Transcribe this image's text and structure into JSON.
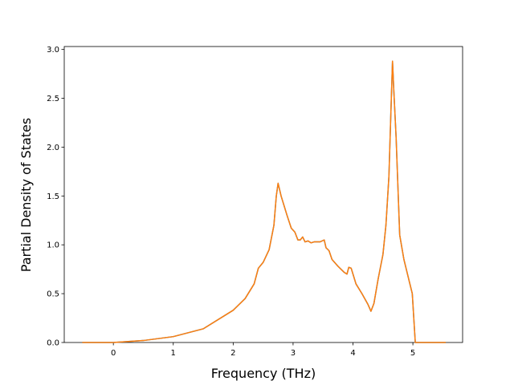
{
  "chart_data": {
    "type": "line",
    "xlabel": "Frequency (THz)",
    "ylabel": "Partial Density of States",
    "x": [
      -0.52,
      0,
      0.5,
      1,
      1.5,
      2,
      2.2,
      2.35,
      2.42,
      2.5,
      2.6,
      2.68,
      2.72,
      2.75,
      2.8,
      2.85,
      2.9,
      2.97,
      3.03,
      3.08,
      3.12,
      3.16,
      3.2,
      3.25,
      3.3,
      3.35,
      3.45,
      3.52,
      3.55,
      3.6,
      3.65,
      3.75,
      3.85,
      3.9,
      3.93,
      3.97,
      4.0,
      4.05,
      4.15,
      4.25,
      4.3,
      4.35,
      4.42,
      4.5,
      4.55,
      4.6,
      4.63,
      4.66,
      4.68,
      4.72,
      4.78,
      4.85,
      4.95,
      4.99,
      5.04,
      5.55
    ],
    "series": [
      {
        "color": "#1f77b4",
        "values": [
          0,
          0,
          0.02,
          0.06,
          0.14,
          0.33,
          0.45,
          0.6,
          0.76,
          0.82,
          0.95,
          1.2,
          1.5,
          1.63,
          1.5,
          1.4,
          1.3,
          1.17,
          1.13,
          1.05,
          1.05,
          1.08,
          1.03,
          1.04,
          1.02,
          1.03,
          1.03,
          1.05,
          0.97,
          0.94,
          0.85,
          0.78,
          0.72,
          0.7,
          0.77,
          0.76,
          0.7,
          0.6,
          0.5,
          0.39,
          0.32,
          0.4,
          0.65,
          0.9,
          1.2,
          1.7,
          2.3,
          2.88,
          2.6,
          2.1,
          1.1,
          0.85,
          0.6,
          0.5,
          0,
          0
        ]
      },
      {
        "color": "#ff7f0e",
        "values": [
          0,
          0,
          0.02,
          0.06,
          0.14,
          0.33,
          0.45,
          0.6,
          0.76,
          0.82,
          0.95,
          1.2,
          1.5,
          1.63,
          1.5,
          1.4,
          1.3,
          1.17,
          1.13,
          1.05,
          1.05,
          1.08,
          1.03,
          1.04,
          1.02,
          1.03,
          1.03,
          1.05,
          0.97,
          0.94,
          0.85,
          0.78,
          0.72,
          0.7,
          0.77,
          0.76,
          0.7,
          0.6,
          0.5,
          0.39,
          0.32,
          0.4,
          0.65,
          0.9,
          1.2,
          1.7,
          2.3,
          2.88,
          2.6,
          2.1,
          1.1,
          0.85,
          0.6,
          0.5,
          0,
          0
        ]
      }
    ],
    "xlim": [
      -0.82,
      5.83
    ],
    "xticks": [
      0,
      1,
      2,
      3,
      4,
      5
    ],
    "ylim": [
      0,
      3.03
    ],
    "yticks": [
      {
        "value": 0,
        "label": "0.0"
      },
      {
        "value": 0.5,
        "label": "0.5"
      },
      {
        "value": 1,
        "label": "1.0"
      },
      {
        "value": 1.5,
        "label": "1.5"
      },
      {
        "value": 2,
        "label": "2.0"
      },
      {
        "value": 2.5,
        "label": "2.5"
      },
      {
        "value": 3,
        "label": "3.0"
      }
    ],
    "grid": false
  }
}
